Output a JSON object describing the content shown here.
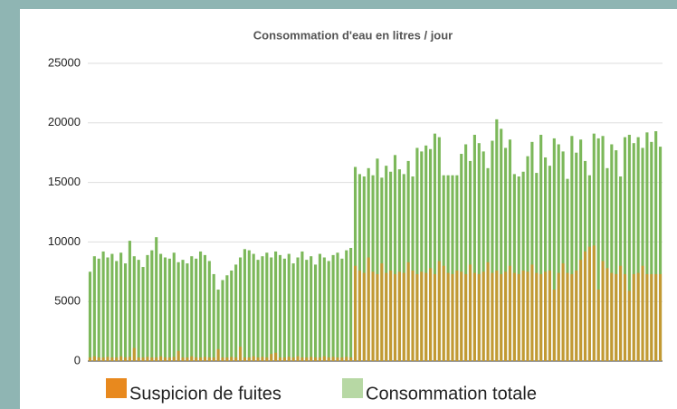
{
  "chart_data": {
    "type": "bar",
    "title": "Consommation d'eau en litres / jour",
    "categories": [
      null,
      null,
      null,
      null,
      null,
      null,
      null,
      null,
      null,
      null,
      null,
      null,
      null,
      null,
      null,
      null,
      null,
      null,
      null,
      null,
      null,
      null,
      null,
      null,
      null,
      null,
      null,
      null,
      null,
      null,
      null,
      null,
      null,
      null,
      null,
      null,
      null,
      null,
      null,
      null,
      null,
      null,
      null,
      null,
      null,
      null,
      null,
      null,
      null,
      null,
      null,
      null,
      null,
      null,
      null,
      null,
      null,
      null,
      null,
      null,
      null,
      null,
      null,
      null,
      null,
      null,
      null,
      null,
      null,
      null,
      null,
      null,
      null,
      null,
      null,
      null,
      null,
      null,
      null,
      null,
      null,
      null,
      null,
      null,
      null,
      null,
      null,
      null,
      null,
      null,
      null,
      null,
      null,
      null,
      null,
      null,
      null,
      null,
      null,
      null,
      null,
      null,
      null,
      null,
      null,
      null,
      null,
      null,
      null,
      null,
      null,
      null,
      null,
      null,
      null,
      null,
      null,
      null,
      null,
      null,
      null,
      null,
      null,
      null,
      null,
      null,
      null,
      null,
      null,
      null
    ],
    "series": [
      {
        "name": "Consommation totale",
        "color": "#7cb85a",
        "values": [
          7500,
          8800,
          8600,
          9200,
          8700,
          9000,
          8400,
          9100,
          8200,
          10100,
          8800,
          8500,
          7900,
          8900,
          9300,
          10400,
          9000,
          8700,
          8600,
          9100,
          8300,
          8500,
          8200,
          8800,
          8600,
          9200,
          8900,
          8400,
          7300,
          6000,
          6800,
          7200,
          7600,
          8100,
          8700,
          9400,
          9300,
          9000,
          8500,
          8800,
          9100,
          8700,
          9200,
          8900,
          8600,
          9000,
          8200,
          8700,
          9200,
          8500,
          8800,
          8100,
          9000,
          8700,
          8400,
          8900,
          9100,
          8600,
          9300,
          9500,
          16300,
          15700,
          15500,
          16200,
          15600,
          17000,
          15400,
          16400,
          15900,
          17300,
          16100,
          15700,
          16800,
          15500,
          17900,
          17600,
          18100,
          17800,
          19100,
          18800,
          15600,
          15600,
          15600,
          15600,
          17400,
          18200,
          16800,
          19000,
          18300,
          17600,
          16200,
          18500,
          20300,
          19500,
          17900,
          18600,
          15700,
          15500,
          15900,
          17200,
          18400,
          15800,
          19000,
          17100,
          16400,
          18700,
          18200,
          17600,
          15300,
          18900,
          17500,
          18600,
          16800,
          15600,
          19100,
          18700,
          18900,
          16200,
          18200,
          17700,
          15500,
          18800,
          19000,
          18300,
          18800,
          17900,
          19200,
          18400,
          19300,
          18000
        ]
      },
      {
        "name": "Suspicion de fuites",
        "color": "#e8891e",
        "values": [
          300,
          400,
          300,
          300,
          350,
          300,
          300,
          400,
          300,
          350,
          1100,
          300,
          300,
          350,
          300,
          300,
          400,
          300,
          300,
          350,
          850,
          300,
          300,
          400,
          300,
          300,
          350,
          300,
          300,
          1000,
          300,
          300,
          350,
          300,
          1200,
          300,
          300,
          400,
          300,
          350,
          300,
          600,
          700,
          300,
          300,
          350,
          300,
          400,
          300,
          300,
          350,
          300,
          300,
          400,
          300,
          350,
          300,
          300,
          350,
          300,
          8000,
          7600,
          7400,
          8700,
          7500,
          7300,
          8200,
          7400,
          7600,
          7300,
          7500,
          7400,
          8300,
          7600,
          7300,
          7500,
          7400,
          7800,
          7300,
          8400,
          8000,
          7400,
          7300,
          7600,
          7500,
          7300,
          8100,
          7400,
          7300,
          7500,
          8300,
          7400,
          7600,
          7300,
          7500,
          8000,
          7400,
          7300,
          7600,
          7500,
          8100,
          7400,
          7300,
          7500,
          7600,
          6000,
          7400,
          8200,
          7400,
          7300,
          7600,
          8500,
          9200,
          9600,
          9700,
          6000,
          8400,
          7800,
          7400,
          7300,
          8000,
          7300,
          5900,
          7300,
          7400,
          8000,
          7300,
          7300,
          7300,
          7300
        ]
      }
    ],
    "ylim": [
      0,
      25000
    ],
    "yticks": [
      0,
      5000,
      10000,
      15000,
      20000,
      25000
    ],
    "grid": true
  }
}
